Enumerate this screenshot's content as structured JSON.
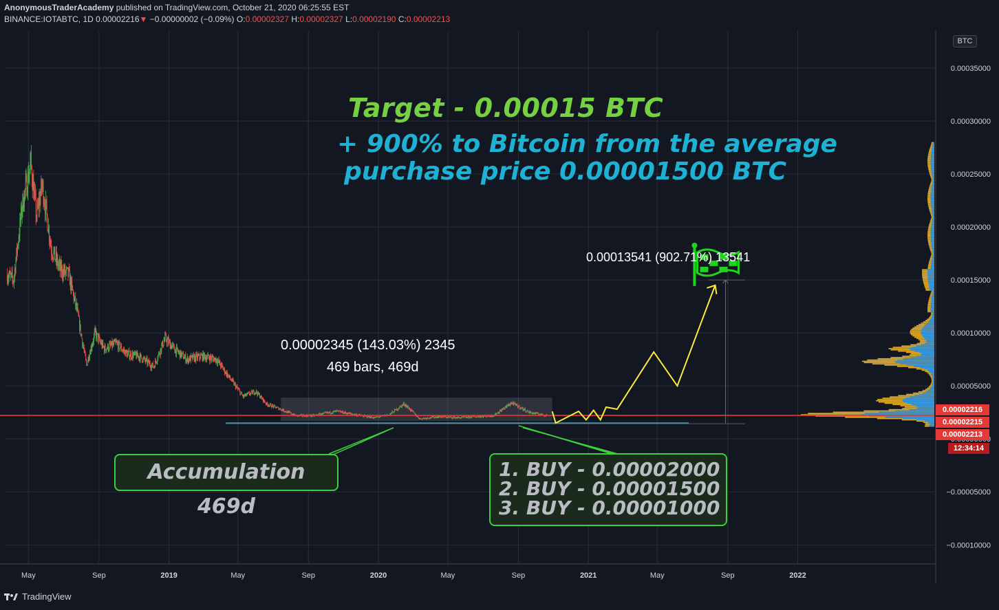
{
  "header": {
    "publisher": "AnonymousTraderAcademy",
    "published_text": "published on TradingView.com, October 21, 2020 06:25:55 EST",
    "symbol": "BINANCE:IOTABTC, 1D",
    "last": "0.00002216",
    "change_arrow": "▼",
    "change": "−0.00000002 (−0.09%)",
    "o_label": "O:",
    "o_value": "0.00002327",
    "h_label": "H:",
    "h_value": "0.00002327",
    "l_label": "L:",
    "l_value": "0.00002190",
    "c_label": "C:",
    "c_value": "0.00002213"
  },
  "axis": {
    "currency_badge": "BTC",
    "price_tags": [
      {
        "text": "0.00002216",
        "color": "#e53935"
      },
      {
        "text": "0.00002215",
        "color": "#e53935"
      },
      {
        "text": "0.00002213",
        "color": "#e53935"
      },
      {
        "text": "12:34:14",
        "color": "#b71c1c"
      }
    ]
  },
  "annotations": {
    "target": "Target - 0.00015 BTC",
    "plus_line1": "+ 900% to Bitcoin from the average",
    "plus_line2": "purchase price 0.00001500 BTC",
    "measure_big": "0.00013541 (902.71%) 13541",
    "measure_small_1": "0.00002345 (143.03%) 2345",
    "measure_small_2": "469 bars, 469d",
    "accumulation": "Accumulation 469d",
    "buy1": "1. BUY - 0.00002000",
    "buy2": "2. BUY - 0.00001500",
    "buy3": "3. BUY - 0.00001000"
  },
  "footer": {
    "brand": "TradingView"
  },
  "colors": {
    "background": "#131722",
    "grid": "#2a2e39",
    "up": "#26a69a",
    "candle_up": "#4caf50",
    "candle_down": "#ef5350",
    "current_price_line": "#e53935",
    "support_line": "#4dd0e1",
    "projection": "#ffeb3b",
    "vp_up": "#2196f3",
    "vp_down": "#fbc02d",
    "target_text": "#76d142",
    "plus_text": "#1fb1d3",
    "box_border": "#3cd13c"
  },
  "chart_data": {
    "type": "candlestick",
    "title": "BINANCE:IOTABTC, 1D",
    "y_axis_ticks": [
      "0.00035000",
      "0.00030000",
      "0.00025000",
      "0.00020000",
      "0.00015000",
      "0.00010000",
      "0.00005000",
      "0.00000000",
      "−0.00005000",
      "−0.00010000"
    ],
    "y_tick_values": [
      0.00035,
      0.0003,
      0.00025,
      0.0002,
      0.00015,
      0.0001,
      5e-05,
      0,
      -5e-05,
      -0.0001
    ],
    "x_axis_ticks": [
      "May",
      "Sep",
      "2019",
      "May",
      "Sep",
      "2020",
      "May",
      "Sep",
      "2021",
      "May",
      "Sep",
      "2022"
    ],
    "x_tick_dates": [
      "2018-05-01",
      "2018-09-01",
      "2019-01-01",
      "2019-05-01",
      "2019-09-01",
      "2020-01-01",
      "2020-05-01",
      "2020-09-01",
      "2021-01-01",
      "2021-05-01",
      "2021-09-01",
      "2022-01-01"
    ],
    "ylim": [
      -0.000118,
      0.000385
    ],
    "xlim": [
      "2018-03-22",
      "2022-08-27"
    ],
    "price_path": [
      {
        "date": "2018-03-25",
        "price": 0.000155
      },
      {
        "date": "2018-04-05",
        "price": 0.00015
      },
      {
        "date": "2018-04-20",
        "price": 0.00022
      },
      {
        "date": "2018-05-05",
        "price": 0.00026
      },
      {
        "date": "2018-05-15",
        "price": 0.00021
      },
      {
        "date": "2018-05-25",
        "price": 0.00024
      },
      {
        "date": "2018-06-10",
        "price": 0.00018
      },
      {
        "date": "2018-06-25",
        "price": 0.00016
      },
      {
        "date": "2018-07-10",
        "price": 0.000155
      },
      {
        "date": "2018-07-25",
        "price": 0.00012
      },
      {
        "date": "2018-08-10",
        "price": 7e-05
      },
      {
        "date": "2018-08-25",
        "price": 0.0001
      },
      {
        "date": "2018-09-10",
        "price": 8.5e-05
      },
      {
        "date": "2018-10-01",
        "price": 9e-05
      },
      {
        "date": "2018-10-20",
        "price": 8e-05
      },
      {
        "date": "2018-11-10",
        "price": 7.8e-05
      },
      {
        "date": "2018-12-05",
        "price": 6.8e-05
      },
      {
        "date": "2018-12-25",
        "price": 9.5e-05
      },
      {
        "date": "2019-01-10",
        "price": 8.5e-05
      },
      {
        "date": "2019-02-01",
        "price": 7.5e-05
      },
      {
        "date": "2019-03-01",
        "price": 7.8e-05
      },
      {
        "date": "2019-03-25",
        "price": 7.5e-05
      },
      {
        "date": "2019-04-20",
        "price": 5.5e-05
      },
      {
        "date": "2019-05-10",
        "price": 4e-05
      },
      {
        "date": "2019-06-01",
        "price": 4.5e-05
      },
      {
        "date": "2019-06-20",
        "price": 3.3e-05
      },
      {
        "date": "2019-07-15",
        "price": 2.8e-05
      },
      {
        "date": "2019-08-10",
        "price": 2.2e-05
      },
      {
        "date": "2019-09-10",
        "price": 2.2e-05
      },
      {
        "date": "2019-10-20",
        "price": 2.6e-05
      },
      {
        "date": "2019-12-01",
        "price": 2.2e-05
      },
      {
        "date": "2019-12-25",
        "price": 2e-05
      },
      {
        "date": "2020-01-20",
        "price": 2.3e-05
      },
      {
        "date": "2020-02-15",
        "price": 3.3e-05
      },
      {
        "date": "2020-03-13",
        "price": 1.9e-05
      },
      {
        "date": "2020-04-15",
        "price": 2.1e-05
      },
      {
        "date": "2020-05-20",
        "price": 2e-05
      },
      {
        "date": "2020-06-20",
        "price": 2.1e-05
      },
      {
        "date": "2020-07-20",
        "price": 2.2e-05
      },
      {
        "date": "2020-08-20",
        "price": 3.4e-05
      },
      {
        "date": "2020-09-20",
        "price": 2.5e-05
      },
      {
        "date": "2020-10-21",
        "price": 2.21e-05
      }
    ],
    "last_price": 2.216e-05,
    "support_level": 1.5e-05,
    "projection_path": [
      {
        "date": "2020-10-30",
        "price": 2.6e-05
      },
      {
        "date": "2020-11-05",
        "price": 1.5e-05
      },
      {
        "date": "2020-12-15",
        "price": 2.6e-05
      },
      {
        "date": "2020-12-28",
        "price": 1.8e-05
      },
      {
        "date": "2021-01-10",
        "price": 2.7e-05
      },
      {
        "date": "2021-01-22",
        "price": 1.8e-05
      },
      {
        "date": "2021-02-01",
        "price": 3e-05
      },
      {
        "date": "2021-02-20",
        "price": 2.8e-05
      },
      {
        "date": "2021-04-25",
        "price": 8.2e-05
      },
      {
        "date": "2021-06-05",
        "price": 5e-05
      },
      {
        "date": "2021-08-10",
        "price": 0.000145
      }
    ],
    "accumulation_range": {
      "start": "2019-07-15",
      "end": "2020-10-30",
      "low": 1.7e-05,
      "high": 3.9e-05
    },
    "measure_target": {
      "date": "2021-08-28",
      "from": 1.5e-05,
      "to": 0.00015
    },
    "target_flag": {
      "date": "2021-07-05",
      "price": 0.00018
    },
    "legend": "none",
    "grid": true
  }
}
